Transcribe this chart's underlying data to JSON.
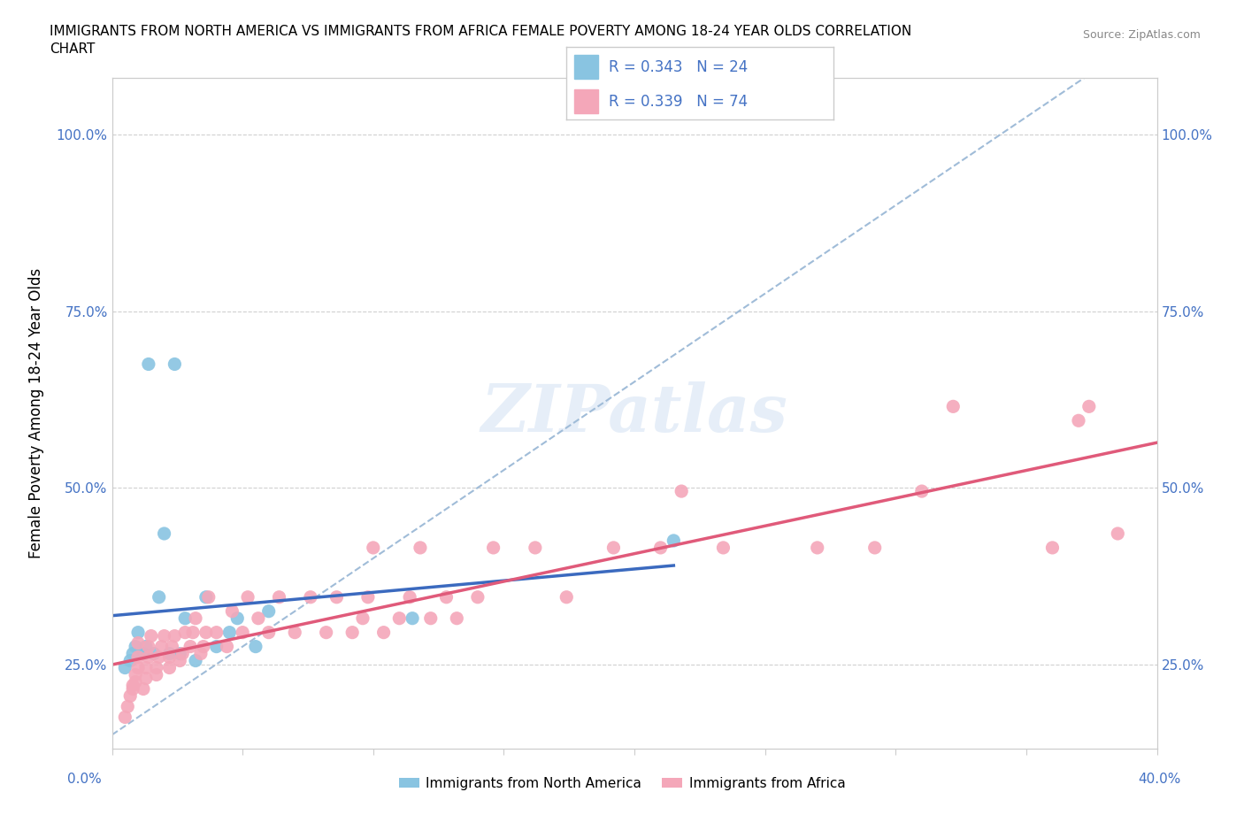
{
  "title_line1": "IMMIGRANTS FROM NORTH AMERICA VS IMMIGRANTS FROM AFRICA FEMALE POVERTY AMONG 18-24 YEAR OLDS CORRELATION",
  "title_line2": "CHART",
  "source": "Source: ZipAtlas.com",
  "ylabel": "Female Poverty Among 18-24 Year Olds",
  "xmin": 0.0,
  "xmax": 0.4,
  "ymin": 0.13,
  "ymax": 1.08,
  "R_north": 0.343,
  "N_north": 24,
  "R_africa": 0.339,
  "N_africa": 74,
  "color_north": "#89c4e1",
  "color_africa": "#f4a7b9",
  "color_trendline_north": "#3b6abf",
  "color_trendline_africa": "#e05a7a",
  "color_dashed": "#a0bcd8",
  "watermark": "ZIPatlas",
  "north_x": [
    0.005,
    0.007,
    0.008,
    0.009,
    0.01,
    0.012,
    0.013,
    0.014,
    0.016,
    0.018,
    0.02,
    0.022,
    0.024,
    0.026,
    0.028,
    0.032,
    0.036,
    0.04,
    0.045,
    0.048,
    0.055,
    0.06,
    0.115,
    0.215
  ],
  "north_y": [
    0.245,
    0.255,
    0.265,
    0.275,
    0.295,
    0.265,
    0.275,
    0.675,
    0.265,
    0.345,
    0.435,
    0.265,
    0.675,
    0.265,
    0.315,
    0.255,
    0.345,
    0.275,
    0.295,
    0.315,
    0.275,
    0.325,
    0.315,
    0.425
  ],
  "africa_x": [
    0.005,
    0.006,
    0.007,
    0.008,
    0.008,
    0.009,
    0.009,
    0.01,
    0.01,
    0.01,
    0.012,
    0.013,
    0.013,
    0.014,
    0.014,
    0.015,
    0.017,
    0.017,
    0.018,
    0.019,
    0.02,
    0.022,
    0.022,
    0.023,
    0.024,
    0.026,
    0.027,
    0.028,
    0.03,
    0.031,
    0.032,
    0.034,
    0.035,
    0.036,
    0.037,
    0.04,
    0.044,
    0.046,
    0.05,
    0.052,
    0.056,
    0.06,
    0.064,
    0.07,
    0.076,
    0.082,
    0.086,
    0.092,
    0.096,
    0.098,
    0.1,
    0.104,
    0.11,
    0.114,
    0.118,
    0.122,
    0.128,
    0.132,
    0.14,
    0.146,
    0.162,
    0.174,
    0.192,
    0.21,
    0.218,
    0.234,
    0.27,
    0.292,
    0.31,
    0.322,
    0.36,
    0.37,
    0.374,
    0.385
  ],
  "africa_y": [
    0.175,
    0.19,
    0.205,
    0.215,
    0.22,
    0.225,
    0.235,
    0.245,
    0.26,
    0.28,
    0.215,
    0.23,
    0.245,
    0.26,
    0.275,
    0.29,
    0.235,
    0.245,
    0.26,
    0.275,
    0.29,
    0.245,
    0.26,
    0.275,
    0.29,
    0.255,
    0.265,
    0.295,
    0.275,
    0.295,
    0.315,
    0.265,
    0.275,
    0.295,
    0.345,
    0.295,
    0.275,
    0.325,
    0.295,
    0.345,
    0.315,
    0.295,
    0.345,
    0.295,
    0.345,
    0.295,
    0.345,
    0.295,
    0.315,
    0.345,
    0.415,
    0.295,
    0.315,
    0.345,
    0.415,
    0.315,
    0.345,
    0.315,
    0.345,
    0.415,
    0.415,
    0.345,
    0.415,
    0.415,
    0.495,
    0.415,
    0.415,
    0.415,
    0.495,
    0.615,
    0.415,
    0.595,
    0.615,
    0.435
  ]
}
